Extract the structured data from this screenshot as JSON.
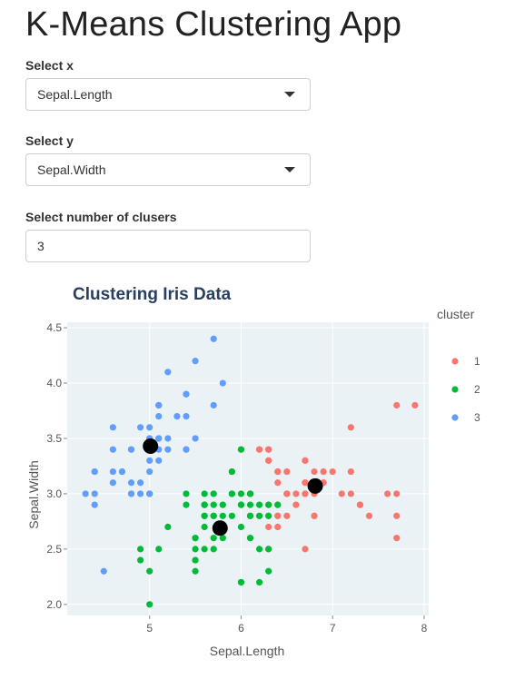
{
  "app": {
    "title": "K-Means Clustering App"
  },
  "inputs": {
    "x": {
      "label": "Select x",
      "value": "Sepal.Length"
    },
    "y": {
      "label": "Select y",
      "value": "Sepal.Width"
    },
    "k": {
      "label": "Select number of clusers",
      "value": "3"
    }
  },
  "colors": {
    "1": "#f8766d",
    "2": "#00ba38",
    "3": "#619cff",
    "center": "#000000",
    "panel": "#eaf2f6"
  },
  "chart_data": {
    "type": "scatter",
    "title": "Clustering Iris Data",
    "xlabel": "Sepal.Length",
    "ylabel": "Sepal.Width",
    "xlim": [
      4.1,
      8.05
    ],
    "ylim": [
      1.9,
      4.55
    ],
    "xticks": [
      "5",
      "6",
      "7",
      "8"
    ],
    "yticks": [
      "2.0",
      "2.5",
      "3.0",
      "3.5",
      "4.0",
      "4.5"
    ],
    "legend_title": "cluster",
    "legend": [
      "1",
      "2",
      "3"
    ],
    "series": [
      {
        "name": "1",
        "color": "#f8766d",
        "points": [
          [
            7.0,
            3.2
          ],
          [
            6.4,
            3.2
          ],
          [
            6.9,
            3.1
          ],
          [
            6.5,
            2.8
          ],
          [
            6.3,
            3.3
          ],
          [
            6.6,
            2.9
          ],
          [
            6.7,
            3.1
          ],
          [
            6.7,
            3.0
          ],
          [
            6.7,
            3.1
          ],
          [
            6.8,
            2.8
          ],
          [
            6.3,
            3.3
          ],
          [
            7.1,
            3.0
          ],
          [
            6.5,
            3.0
          ],
          [
            7.6,
            3.0
          ],
          [
            7.3,
            2.9
          ],
          [
            6.7,
            2.5
          ],
          [
            7.2,
            3.6
          ],
          [
            6.5,
            3.2
          ],
          [
            6.4,
            2.7
          ],
          [
            6.8,
            3.0
          ],
          [
            6.4,
            3.2
          ],
          [
            6.5,
            3.0
          ],
          [
            7.7,
            3.8
          ],
          [
            7.7,
            2.6
          ],
          [
            6.9,
            3.2
          ],
          [
            7.7,
            2.8
          ],
          [
            6.7,
            3.3
          ],
          [
            7.2,
            3.2
          ],
          [
            6.2,
            2.8
          ],
          [
            6.4,
            2.8
          ],
          [
            7.2,
            3.0
          ],
          [
            7.4,
            2.8
          ],
          [
            7.9,
            3.8
          ],
          [
            6.4,
            2.8
          ],
          [
            6.3,
            2.8
          ],
          [
            6.1,
            2.6
          ],
          [
            7.7,
            3.0
          ],
          [
            6.3,
            3.4
          ],
          [
            6.4,
            3.1
          ],
          [
            6.9,
            3.1
          ],
          [
            6.7,
            3.1
          ],
          [
            6.9,
            3.1
          ],
          [
            6.8,
            3.2
          ],
          [
            6.7,
            3.3
          ],
          [
            6.7,
            3.0
          ],
          [
            6.3,
            2.5
          ],
          [
            6.5,
            3.0
          ],
          [
            6.2,
            3.4
          ],
          [
            6.1,
            3.0
          ],
          [
            6.6,
            3.0
          ],
          [
            6.0,
            3.4
          ],
          [
            6.8,
            2.8
          ],
          [
            6.3,
            2.9
          ],
          [
            6.3,
            3.4
          ],
          [
            6.1,
            2.8
          ],
          [
            6.2,
            3.4
          ],
          [
            6.4,
            2.9
          ],
          [
            6.3,
            2.7
          ],
          [
            7.3,
            2.9
          ],
          [
            6.1,
            2.8
          ],
          [
            6.1,
            3.0
          ],
          [
            5.9,
            3.2
          ]
        ]
      },
      {
        "name": "2",
        "color": "#00ba38",
        "points": [
          [
            5.5,
            2.3
          ],
          [
            5.7,
            2.8
          ],
          [
            4.9,
            2.4
          ],
          [
            5.2,
            2.7
          ],
          [
            5.0,
            2.0
          ],
          [
            5.9,
            3.0
          ],
          [
            6.0,
            2.2
          ],
          [
            6.1,
            2.9
          ],
          [
            5.6,
            2.9
          ],
          [
            5.8,
            2.7
          ],
          [
            6.2,
            2.2
          ],
          [
            5.6,
            2.5
          ],
          [
            5.9,
            3.2
          ],
          [
            6.1,
            2.8
          ],
          [
            5.7,
            2.6
          ],
          [
            5.5,
            2.4
          ],
          [
            5.5,
            2.4
          ],
          [
            5.8,
            2.7
          ],
          [
            6.0,
            2.7
          ],
          [
            5.4,
            3.0
          ],
          [
            6.0,
            3.4
          ],
          [
            6.3,
            2.3
          ],
          [
            5.6,
            3.0
          ],
          [
            5.5,
            2.5
          ],
          [
            5.5,
            2.6
          ],
          [
            6.1,
            3.0
          ],
          [
            5.8,
            2.6
          ],
          [
            5.0,
            2.3
          ],
          [
            5.6,
            2.7
          ],
          [
            5.7,
            3.0
          ],
          [
            5.7,
            2.9
          ],
          [
            6.2,
            2.9
          ],
          [
            5.1,
            2.5
          ],
          [
            5.7,
            2.8
          ],
          [
            4.9,
            2.5
          ],
          [
            5.7,
            2.5
          ],
          [
            5.8,
            2.8
          ],
          [
            6.0,
            2.2
          ],
          [
            5.6,
            2.8
          ],
          [
            6.3,
            2.5
          ],
          [
            5.8,
            2.7
          ],
          [
            6.1,
            2.6
          ],
          [
            5.8,
            2.7
          ],
          [
            6.0,
            3.0
          ],
          [
            5.9,
            3.0
          ],
          [
            6.3,
            2.8
          ],
          [
            5.6,
            2.8
          ],
          [
            6.2,
            2.8
          ],
          [
            6.0,
            2.9
          ],
          [
            5.4,
            2.9
          ],
          [
            5.6,
            2.9
          ],
          [
            6.0,
            2.9
          ],
          [
            5.6,
            2.9
          ],
          [
            6.3,
            2.9
          ],
          [
            5.5,
            2.6
          ],
          [
            6.2,
            2.5
          ],
          [
            5.8,
            2.9
          ],
          [
            5.0,
            3.0
          ],
          [
            5.9,
            2.8
          ],
          [
            6.4,
            2.9
          ]
        ]
      },
      {
        "name": "3",
        "color": "#619cff",
        "points": [
          [
            5.1,
            3.5
          ],
          [
            4.9,
            3.0
          ],
          [
            4.7,
            3.2
          ],
          [
            4.6,
            3.1
          ],
          [
            5.0,
            3.6
          ],
          [
            5.4,
            3.9
          ],
          [
            4.6,
            3.4
          ],
          [
            5.0,
            3.4
          ],
          [
            4.4,
            2.9
          ],
          [
            4.9,
            3.1
          ],
          [
            5.4,
            3.7
          ],
          [
            4.8,
            3.4
          ],
          [
            4.8,
            3.0
          ],
          [
            4.3,
            3.0
          ],
          [
            5.8,
            4.0
          ],
          [
            5.7,
            4.4
          ],
          [
            5.4,
            3.9
          ],
          [
            5.1,
            3.5
          ],
          [
            5.7,
            3.8
          ],
          [
            5.1,
            3.8
          ],
          [
            5.4,
            3.4
          ],
          [
            5.1,
            3.7
          ],
          [
            4.6,
            3.6
          ],
          [
            5.1,
            3.3
          ],
          [
            4.8,
            3.4
          ],
          [
            5.0,
            3.0
          ],
          [
            5.0,
            3.4
          ],
          [
            5.2,
            3.5
          ],
          [
            5.2,
            3.4
          ],
          [
            4.7,
            3.2
          ],
          [
            4.8,
            3.1
          ],
          [
            5.4,
            3.4
          ],
          [
            5.2,
            4.1
          ],
          [
            5.5,
            4.2
          ],
          [
            5.0,
            3.2
          ],
          [
            5.5,
            3.5
          ],
          [
            4.4,
            3.0
          ],
          [
            5.1,
            3.4
          ],
          [
            5.0,
            3.5
          ],
          [
            4.5,
            2.3
          ],
          [
            4.4,
            3.2
          ],
          [
            5.0,
            3.5
          ],
          [
            5.1,
            3.8
          ],
          [
            4.8,
            3.0
          ],
          [
            5.1,
            3.8
          ],
          [
            4.6,
            3.2
          ],
          [
            5.3,
            3.7
          ],
          [
            5.0,
            3.3
          ],
          [
            4.9,
            3.6
          ],
          [
            4.4,
            3.2
          ]
        ]
      }
    ],
    "centers": [
      [
        6.81,
        3.07
      ],
      [
        5.77,
        2.69
      ],
      [
        5.01,
        3.43
      ]
    ]
  }
}
